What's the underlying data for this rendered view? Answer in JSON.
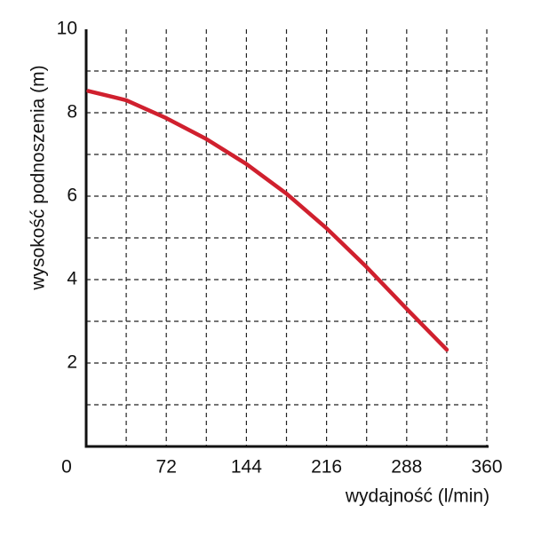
{
  "chart_data": {
    "type": "line",
    "xlabel": "wydajność (l/min)",
    "ylabel": "wysokość podnoszenia (m)",
    "x": [
      2,
      36,
      72,
      108,
      144,
      180,
      216,
      252,
      288,
      324
    ],
    "series": [
      {
        "color": "#d0202e",
        "values": [
          8.52,
          8.3,
          7.87,
          7.37,
          6.77,
          6.06,
          5.23,
          4.3,
          3.3,
          2.32
        ]
      }
    ],
    "xlim": [
      0,
      360
    ],
    "xticks": [
      0,
      72,
      144,
      216,
      288,
      360
    ],
    "ylim": [
      0,
      10
    ],
    "yticks": [
      2,
      4,
      6,
      8,
      10
    ],
    "grid": true
  }
}
